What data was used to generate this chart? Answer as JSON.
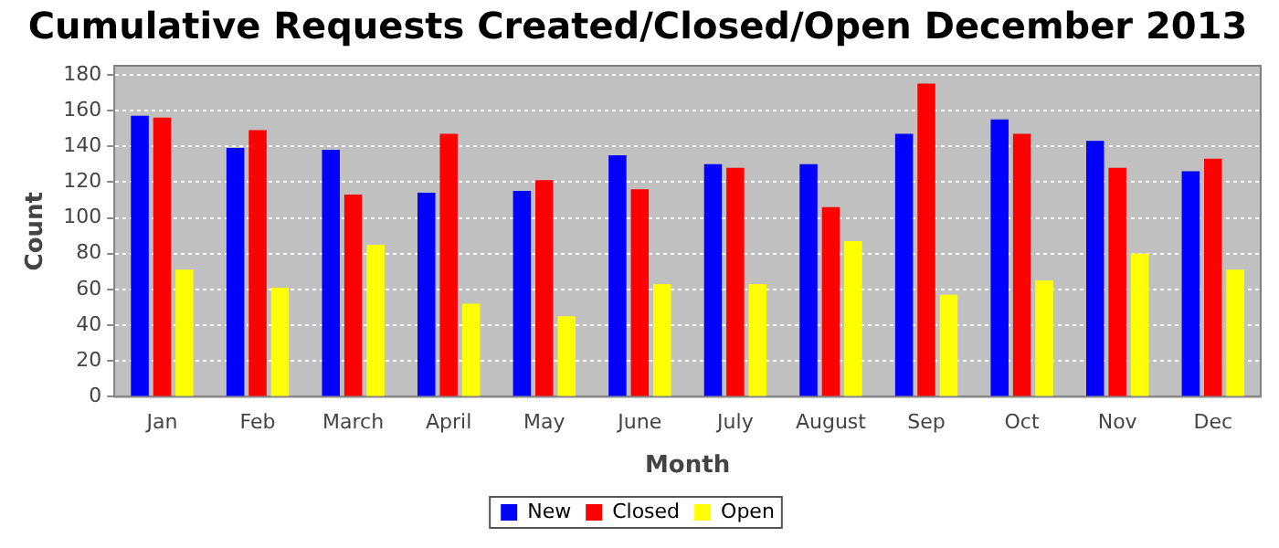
{
  "chart_data": {
    "type": "bar",
    "title": "Cumulative Requests Created/Closed/Open December 2013",
    "xlabel": "Month",
    "ylabel": "Count",
    "categories": [
      "Jan",
      "Feb",
      "March",
      "April",
      "May",
      "June",
      "July",
      "August",
      "Sep",
      "Oct",
      "Nov",
      "Dec"
    ],
    "series": [
      {
        "name": "New",
        "color": "#0000ff",
        "values": [
          157,
          139,
          138,
          114,
          115,
          135,
          130,
          130,
          147,
          155,
          143,
          126
        ]
      },
      {
        "name": "Closed",
        "color": "#ff0000",
        "values": [
          156,
          149,
          113,
          147,
          121,
          116,
          128,
          106,
          175,
          147,
          128,
          133
        ]
      },
      {
        "name": "Open",
        "color": "#ffff00",
        "values": [
          71,
          61,
          85,
          52,
          45,
          63,
          63,
          87,
          57,
          65,
          80,
          71
        ]
      }
    ],
    "ylim": [
      0,
      185
    ],
    "yticks": [
      0,
      20,
      40,
      60,
      80,
      100,
      120,
      140,
      160,
      180
    ],
    "grid": "y",
    "legend": "bottom"
  }
}
